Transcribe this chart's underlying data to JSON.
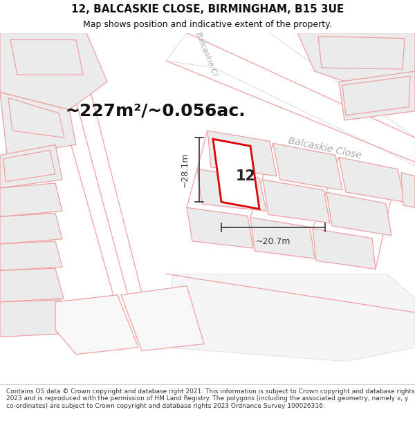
{
  "title": "12, BALCASKIE CLOSE, BIRMINGHAM, B15 3UE",
  "subtitle": "Map shows position and indicative extent of the property.",
  "area_text": "~227m²/~0.056ac.",
  "property_number": "12",
  "dimension_width": "~20.7m",
  "dimension_height": "~28.1m",
  "street_label": "Balcaskie Close",
  "footer_text": "Contains OS data © Crown copyright and database right 2021. This information is subject to Crown copyright and database rights 2023 and is reproduced with the permission of HM Land Registry. The polygons (including the associated geometry, namely x, y co-ordinates) are subject to Crown copyright and database rights 2023 Ordnance Survey 100026316.",
  "bg_color": "#ffffff",
  "map_bg": "#fafafa",
  "parcel_fill": "#ebebeb",
  "parcel_outline": "#f0a0a0",
  "road_fill": "#ffffff",
  "property_fill": "#ffffff",
  "property_outline": "#dd0000",
  "text_color": "#111111",
  "dim_color": "#333333",
  "street_color": "#aaaaaa",
  "title_fontsize": 11,
  "subtitle_fontsize": 9,
  "area_fontsize": 18,
  "street_fontsize": 10,
  "footer_fontsize": 6.5
}
